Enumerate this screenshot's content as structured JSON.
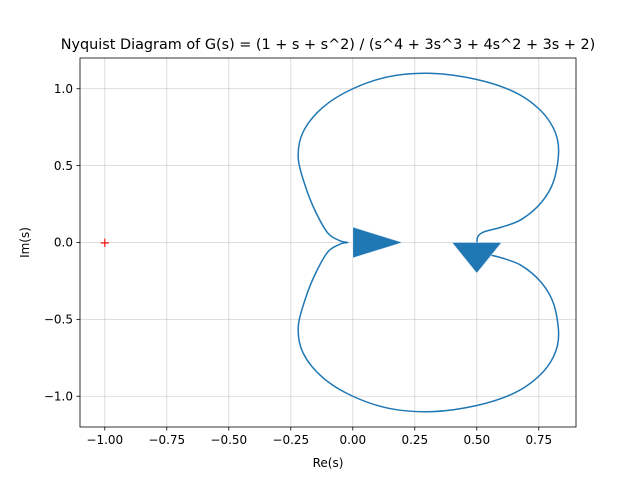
{
  "chart_data": {
    "type": "line",
    "title": "Nyquist Diagram of G(s) = (1 + s + s^2) / (s^4 + 3s^3 + 4s^2 + 3s + 2)",
    "xlabel": "Re(s)",
    "ylabel": "Im(s)",
    "xlim": [
      -1.1,
      0.9
    ],
    "ylim": [
      -1.2,
      1.2
    ],
    "grid": true,
    "x_ticks": [
      "−1.00",
      "−0.75",
      "−0.50",
      "−0.25",
      "0.00",
      "0.25",
      "0.50",
      "0.75"
    ],
    "x_tick_values": [
      -1.0,
      -0.75,
      -0.5,
      -0.25,
      0.0,
      0.25,
      0.5,
      0.75
    ],
    "y_ticks": [
      "−1.0",
      "−0.5",
      "0.0",
      "0.5",
      "1.0"
    ],
    "y_tick_values": [
      -1.0,
      -0.5,
      0.0,
      0.5,
      1.0
    ],
    "critical_point": {
      "x": -1.0,
      "y": 0.0,
      "marker": "+"
    },
    "series": [
      {
        "points": [
          [
            0.5,
            0.0
          ],
          [
            0.505,
            0.04
          ],
          [
            0.53,
            0.07
          ],
          [
            0.6,
            0.1
          ],
          [
            0.68,
            0.15
          ],
          [
            0.76,
            0.26
          ],
          [
            0.81,
            0.4
          ],
          [
            0.83,
            0.6
          ],
          [
            0.81,
            0.74
          ],
          [
            0.75,
            0.87
          ],
          [
            0.65,
            0.98
          ],
          [
            0.5,
            1.06
          ],
          [
            0.32,
            1.1
          ],
          [
            0.15,
            1.08
          ],
          [
            0.0,
            1.0
          ],
          [
            -0.12,
            0.88
          ],
          [
            -0.2,
            0.72
          ],
          [
            -0.22,
            0.55
          ],
          [
            -0.19,
            0.36
          ],
          [
            -0.15,
            0.2
          ],
          [
            -0.1,
            0.06
          ],
          [
            -0.05,
            0.01
          ],
          [
            -0.02,
            0.0
          ],
          [
            -0.05,
            -0.01
          ],
          [
            -0.1,
            -0.06
          ],
          [
            -0.15,
            -0.2
          ],
          [
            -0.19,
            -0.36
          ],
          [
            -0.22,
            -0.55
          ],
          [
            -0.2,
            -0.72
          ],
          [
            -0.12,
            -0.88
          ],
          [
            0.0,
            -1.0
          ],
          [
            0.15,
            -1.08
          ],
          [
            0.32,
            -1.1
          ],
          [
            0.5,
            -1.06
          ],
          [
            0.65,
            -0.98
          ],
          [
            0.75,
            -0.87
          ],
          [
            0.81,
            -0.74
          ],
          [
            0.83,
            -0.6
          ],
          [
            0.81,
            -0.4
          ],
          [
            0.76,
            -0.26
          ],
          [
            0.68,
            -0.15
          ],
          [
            0.6,
            -0.1
          ],
          [
            0.53,
            -0.07
          ],
          [
            0.505,
            -0.04
          ],
          [
            0.5,
            0.0
          ]
        ],
        "color": "#1f77b4"
      }
    ],
    "arrows": [
      {
        "direction": "right",
        "base_x": 0.0,
        "tip_x": 0.2,
        "y": 0.0,
        "half_width": 0.1
      },
      {
        "direction": "down",
        "x": 0.5,
        "base_y": 0.0,
        "tip_y": -0.2,
        "half_width": 0.1
      }
    ],
    "colors": {
      "line": "#1f77b4",
      "grid": "#b0b0b0",
      "critical": "#ff0000"
    }
  }
}
